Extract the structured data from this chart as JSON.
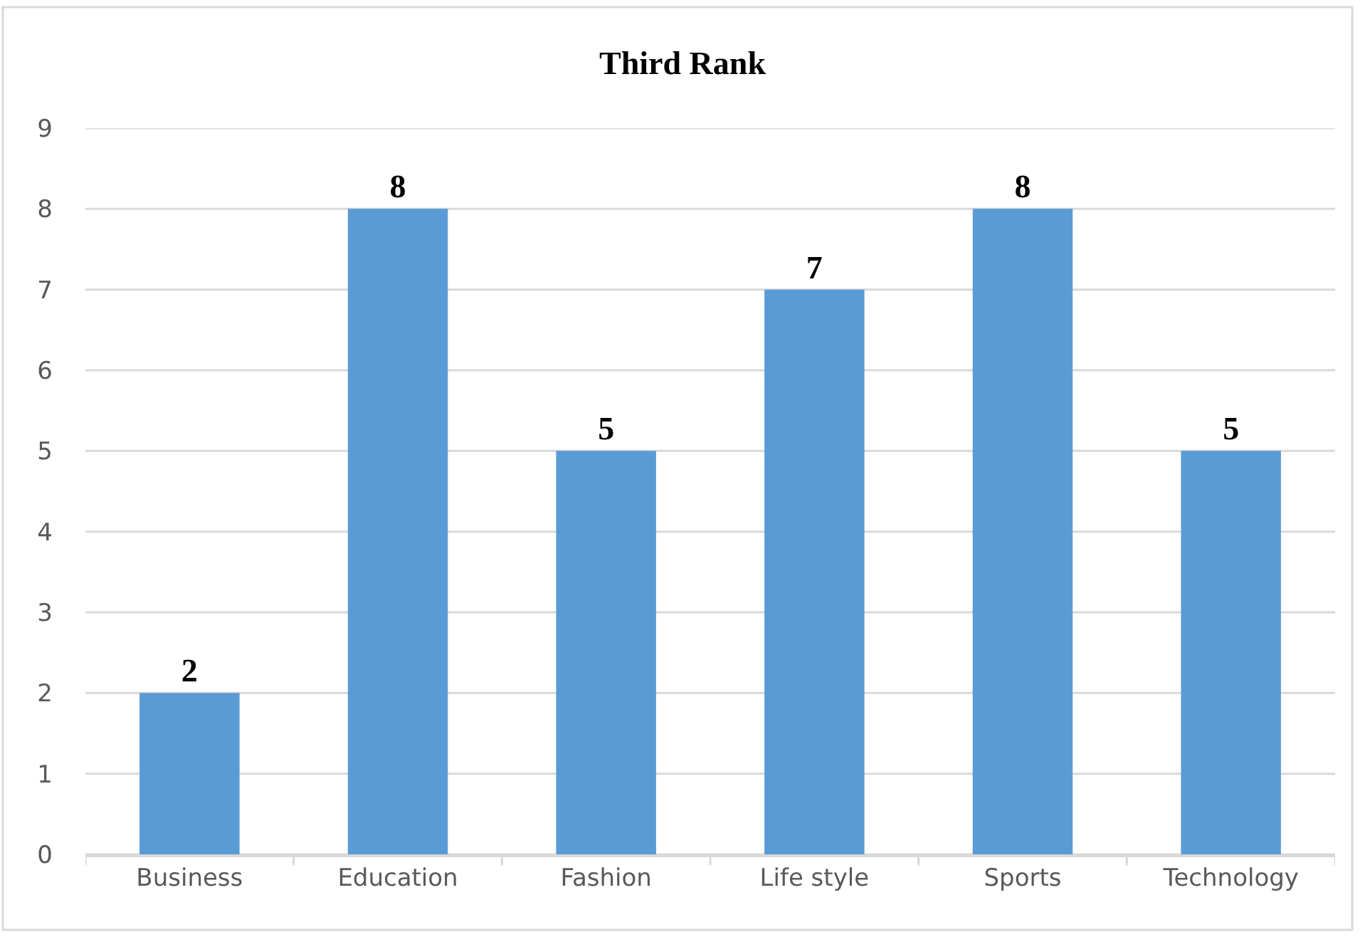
{
  "chart_data": {
    "type": "bar",
    "title": "Third Rank",
    "categories": [
      "Business",
      "Education",
      "Fashion",
      "Life style",
      "Sports",
      "Technology"
    ],
    "values": [
      2,
      8,
      5,
      7,
      8,
      5
    ],
    "color": "#5b9bd5",
    "ylim": [
      0,
      9
    ],
    "yticks": [
      0,
      1,
      2,
      3,
      4,
      5,
      6,
      7,
      8,
      9
    ],
    "grid": "y",
    "data_labels": true
  }
}
